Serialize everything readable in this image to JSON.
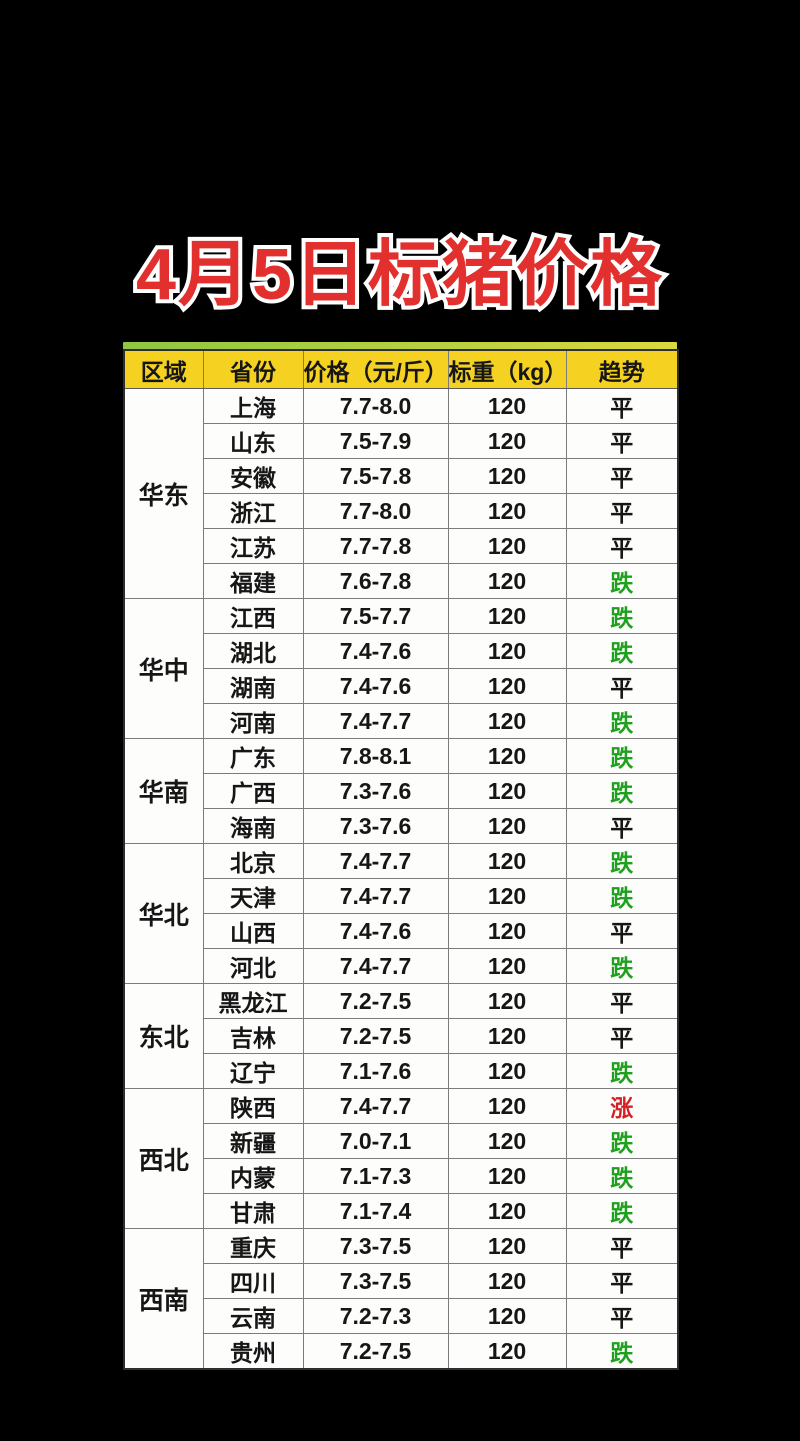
{
  "title": {
    "text": "4月5日标猪价格",
    "color": "#e2302e",
    "outline_color": "#ffffff"
  },
  "table": {
    "header_bg": "#f5d122",
    "strip_colors": [
      "#8fc641",
      "#d9d83f"
    ],
    "trend_colors": {
      "涨": "#d32127",
      "跌": "#1fa11f",
      "平": "#161616"
    }
  },
  "chart_data": {
    "type": "table",
    "title": "4月5日标猪价格",
    "columns": [
      "区域",
      "省份",
      "价格（元/斤）",
      "标重（kg）",
      "趋势"
    ],
    "rows": [
      [
        "华东",
        "上海",
        "7.7-8.0",
        "120",
        "平"
      ],
      [
        "华东",
        "山东",
        "7.5-7.9",
        "120",
        "平"
      ],
      [
        "华东",
        "安徽",
        "7.5-7.8",
        "120",
        "平"
      ],
      [
        "华东",
        "浙江",
        "7.7-8.0",
        "120",
        "平"
      ],
      [
        "华东",
        "江苏",
        "7.7-7.8",
        "120",
        "平"
      ],
      [
        "华东",
        "福建",
        "7.6-7.8",
        "120",
        "跌"
      ],
      [
        "华中",
        "江西",
        "7.5-7.7",
        "120",
        "跌"
      ],
      [
        "华中",
        "湖北",
        "7.4-7.6",
        "120",
        "跌"
      ],
      [
        "华中",
        "湖南",
        "7.4-7.6",
        "120",
        "平"
      ],
      [
        "华中",
        "河南",
        "7.4-7.7",
        "120",
        "跌"
      ],
      [
        "华南",
        "广东",
        "7.8-8.1",
        "120",
        "跌"
      ],
      [
        "华南",
        "广西",
        "7.3-7.6",
        "120",
        "跌"
      ],
      [
        "华南",
        "海南",
        "7.3-7.6",
        "120",
        "平"
      ],
      [
        "华北",
        "北京",
        "7.4-7.7",
        "120",
        "跌"
      ],
      [
        "华北",
        "天津",
        "7.4-7.7",
        "120",
        "跌"
      ],
      [
        "华北",
        "山西",
        "7.4-7.6",
        "120",
        "平"
      ],
      [
        "华北",
        "河北",
        "7.4-7.7",
        "120",
        "跌"
      ],
      [
        "东北",
        "黑龙江",
        "7.2-7.5",
        "120",
        "平"
      ],
      [
        "东北",
        "吉林",
        "7.2-7.5",
        "120",
        "平"
      ],
      [
        "东北",
        "辽宁",
        "7.1-7.6",
        "120",
        "跌"
      ],
      [
        "西北",
        "陕西",
        "7.4-7.7",
        "120",
        "涨"
      ],
      [
        "西北",
        "新疆",
        "7.0-7.1",
        "120",
        "跌"
      ],
      [
        "西北",
        "内蒙",
        "7.1-7.3",
        "120",
        "跌"
      ],
      [
        "西北",
        "甘肃",
        "7.1-7.4",
        "120",
        "跌"
      ],
      [
        "西南",
        "重庆",
        "7.3-7.5",
        "120",
        "平"
      ],
      [
        "西南",
        "四川",
        "7.3-7.5",
        "120",
        "平"
      ],
      [
        "西南",
        "云南",
        "7.2-7.3",
        "120",
        "平"
      ],
      [
        "西南",
        "贵州",
        "7.2-7.5",
        "120",
        "跌"
      ]
    ]
  }
}
